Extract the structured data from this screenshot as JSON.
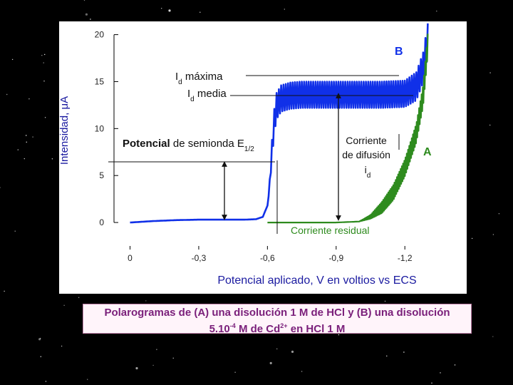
{
  "background_color": "#000000",
  "caption": {
    "line1": "Polarogramas de (A) una disolución 1 M de HCl y (B) una disolución",
    "line2_prefix": "5.10",
    "line2_exp1": "-4",
    "line2_mid": " M de Cd",
    "line2_exp2": "2+",
    "line2_suffix": " en HCl 1 M",
    "color": "#7a1f7a"
  },
  "chart_data": {
    "type": "line",
    "xlabel": "Potencial aplicado, V en voltios vs ECS",
    "ylabel": "Intensidad, μA",
    "x_ticks": [
      {
        "value": 0,
        "label": "0"
      },
      {
        "value": -0.3,
        "label": "-0,3"
      },
      {
        "value": -0.6,
        "label": "-0,6"
      },
      {
        "value": -0.9,
        "label": "-0,9"
      },
      {
        "value": -1.2,
        "label": "-1,2"
      }
    ],
    "y_ticks": [
      {
        "value": 0,
        "label": "0"
      },
      {
        "value": 5,
        "label": "5"
      },
      {
        "value": 10,
        "label": "10"
      },
      {
        "value": 15,
        "label": "15"
      },
      {
        "value": 20,
        "label": "20"
      }
    ],
    "xlim": [
      0.07,
      -1.33
    ],
    "ylim": [
      -2.5,
      20.5
    ],
    "series": [
      {
        "name": "B",
        "color": "#1030e8",
        "x": [
          0.0,
          -0.1,
          -0.2,
          -0.3,
          -0.4,
          -0.5,
          -0.55,
          -0.58,
          -0.6,
          -0.61,
          -0.62,
          -0.63,
          -0.64,
          -0.66,
          -0.7,
          -0.75,
          -0.8,
          -0.9,
          -1.0,
          -1.1,
          -1.2,
          -1.25,
          -1.28,
          -1.3
        ],
        "y": [
          0.0,
          0.15,
          0.25,
          0.3,
          0.3,
          0.3,
          0.35,
          0.6,
          1.8,
          4.2,
          7.8,
          10.8,
          12.4,
          13.2,
          13.5,
          13.6,
          13.6,
          13.6,
          13.6,
          13.6,
          13.7,
          14.5,
          16.5,
          19.5
        ],
        "oscillation_amplitude": [
          0,
          0,
          0,
          0,
          0,
          0,
          0,
          0,
          0,
          0.4,
          1.0,
          1.3,
          1.4,
          1.4,
          1.4,
          1.4,
          1.4,
          1.4,
          1.4,
          1.4,
          1.4,
          1.5,
          1.6,
          1.7
        ]
      },
      {
        "name": "A",
        "color": "#2e8b1e",
        "x": [
          -0.6,
          -0.7,
          -0.8,
          -0.9,
          -1.0,
          -1.05,
          -1.1,
          -1.15,
          -1.2,
          -1.25,
          -1.28,
          -1.3
        ],
        "y": [
          0.0,
          0.0,
          0.0,
          0.0,
          0.1,
          0.6,
          1.6,
          3.2,
          5.8,
          9.5,
          13.5,
          19.0
        ],
        "oscillation_amplitude": [
          0,
          0,
          0,
          0,
          0,
          0.2,
          0.6,
          0.8,
          0.9,
          1.0,
          1.1,
          1.1
        ]
      }
    ],
    "annotations": {
      "label_B": "B",
      "label_A": "A",
      "id_max_text": "I",
      "id_max_sub": "d",
      "id_max_suffix": " máxima",
      "id_mean_text": "I",
      "id_mean_sub": "d",
      "id_mean_suffix": " media",
      "half_wave_bold": "Potencial",
      "half_wave_rest": " de semionda E",
      "half_wave_sub": "1/2",
      "diffusion_line1": "Corriente",
      "diffusion_line2": "de difusión",
      "diffusion_line3": "i",
      "diffusion_line3_sub": "d",
      "residual": "Corriente residual",
      "residual_color": "#2e8b1e"
    }
  }
}
